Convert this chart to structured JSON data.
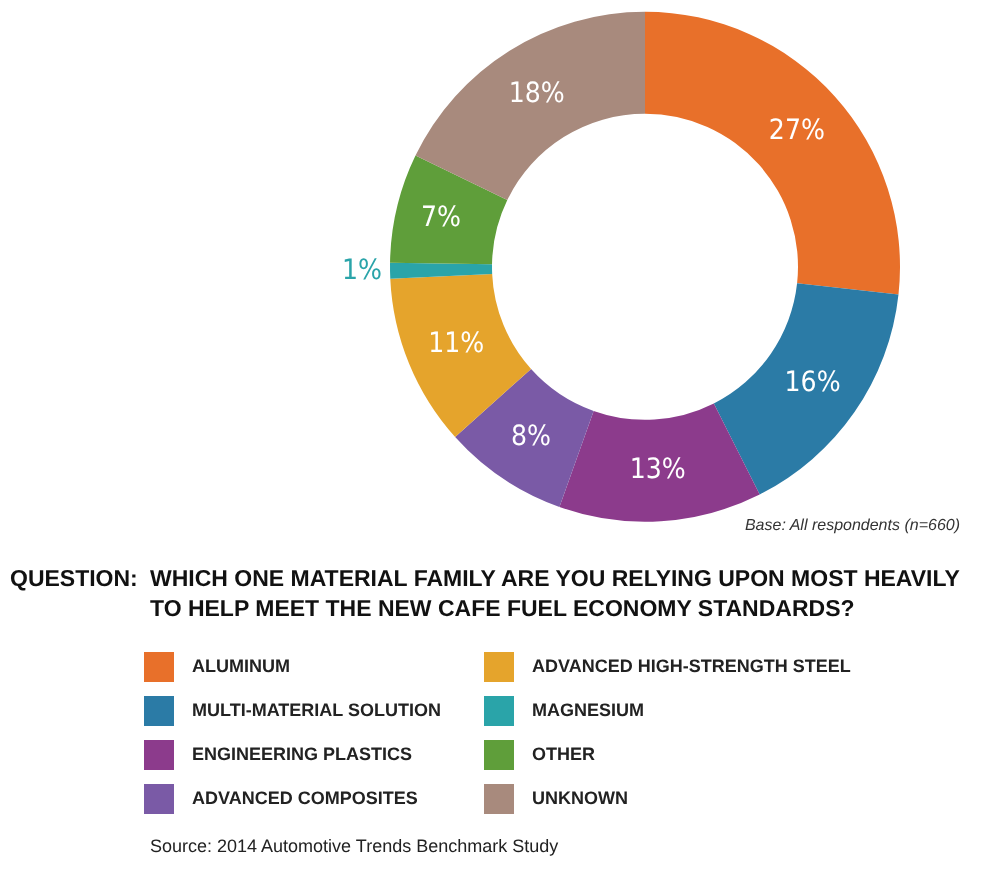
{
  "chart_data": {
    "type": "donut",
    "title": "QUESTION:  WHICH ONE MATERIAL FAMILY ARE YOU RELYING UPON MOST HEAVILY TO HELP MEET THE NEW CAFE FUEL ECONOMY STANDARDS?",
    "categories": [
      "ALUMINUM",
      "MULTI-MATERIAL SOLUTION",
      "ENGINEERING PLASTICS",
      "ADVANCED COMPOSITES",
      "ADVANCED HIGH-STRENGTH STEEL",
      "MAGNESIUM",
      "OTHER",
      "UNKNOWN"
    ],
    "values": [
      27,
      16,
      13,
      8,
      11,
      1,
      7,
      18
    ],
    "value_labels": [
      "27%",
      "16%",
      "13%",
      "8%",
      "11%",
      "1%",
      "7%",
      "18%"
    ],
    "colors": [
      "#e8702a",
      "#2b7ba6",
      "#8c3b8c",
      "#7a5aa6",
      "#e5a42c",
      "#2aa4a9",
      "#5f9e3a",
      "#a88a7d"
    ],
    "legend": "bottom",
    "annotations": [
      "Base: All respondents (n=660)",
      "Source: 2014 Automotive Trends Benchmark Study"
    ]
  }
}
